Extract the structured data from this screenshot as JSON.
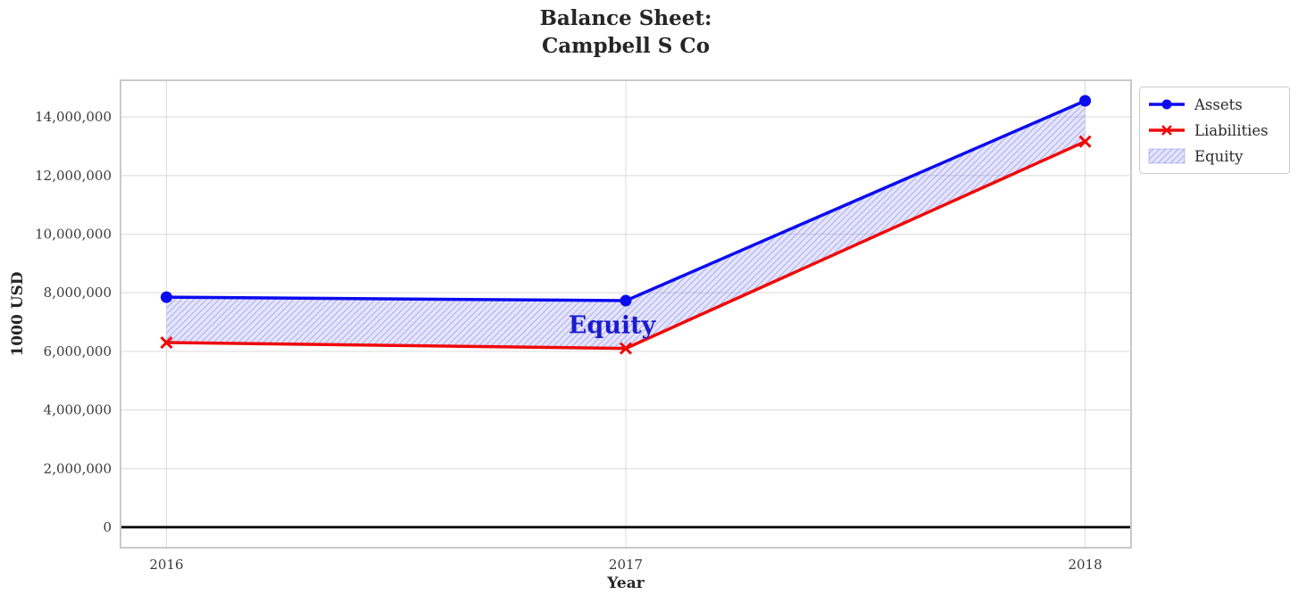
{
  "figure": {
    "background": "#ffffff"
  },
  "chart_data": {
    "type": "line",
    "title": "Balance Sheet:\nCampbell S Co",
    "xlabel": "Year",
    "ylabel": "1000 USD",
    "x": [
      2016,
      2017,
      2018
    ],
    "xticks": {
      "values": [
        2016,
        2017,
        2018
      ],
      "labels": [
        "2016",
        "2017",
        "2018"
      ]
    },
    "yticks": {
      "values": [
        0,
        2000000,
        4000000,
        6000000,
        8000000,
        10000000,
        12000000,
        14000000
      ],
      "labels": [
        "0",
        "2,000,000",
        "4,000,000",
        "6,000,000",
        "8,000,000",
        "10,000,000",
        "12,000,000",
        "14,000,000"
      ]
    },
    "xlim": [
      2015.9,
      2018.1
    ],
    "ylim": [
      -700000,
      15250000
    ],
    "grid": true,
    "grid_color": "#dedede",
    "spine_color": "#c9c9c9",
    "zero_line": {
      "value": 0,
      "color": "#000000"
    },
    "series": [
      {
        "name": "Assets",
        "values": [
          7850000,
          7730000,
          14550000
        ],
        "color": "#0b0bef",
        "marker": "circle"
      },
      {
        "name": "Liabilities",
        "values": [
          6300000,
          6100000,
          13160000
        ],
        "color": "#ee0a0a",
        "marker": "x"
      }
    ],
    "fill_between": {
      "label": "Equity",
      "upper": "Assets",
      "lower": "Liabilities",
      "fill_color": "rgba(95,95,235,0.16)",
      "hatch_color": "rgba(80,80,215,0.32)",
      "hatch": "/"
    },
    "annotation": {
      "text": "Equity",
      "x": 2016.97,
      "y": 6880000,
      "color": "#1c1ccd"
    },
    "legend": {
      "position": "upper-right-outside",
      "entries": [
        {
          "label": "Assets",
          "type": "line",
          "marker": "circle",
          "color": "#0b0bef"
        },
        {
          "label": "Liabilities",
          "type": "line",
          "marker": "x",
          "color": "#ee0a0a"
        },
        {
          "label": "Equity",
          "type": "patch"
        }
      ]
    }
  },
  "text_colors": {
    "title": "#262626",
    "ticks": "#3a3a3a",
    "legend": "#2a2a2a"
  }
}
